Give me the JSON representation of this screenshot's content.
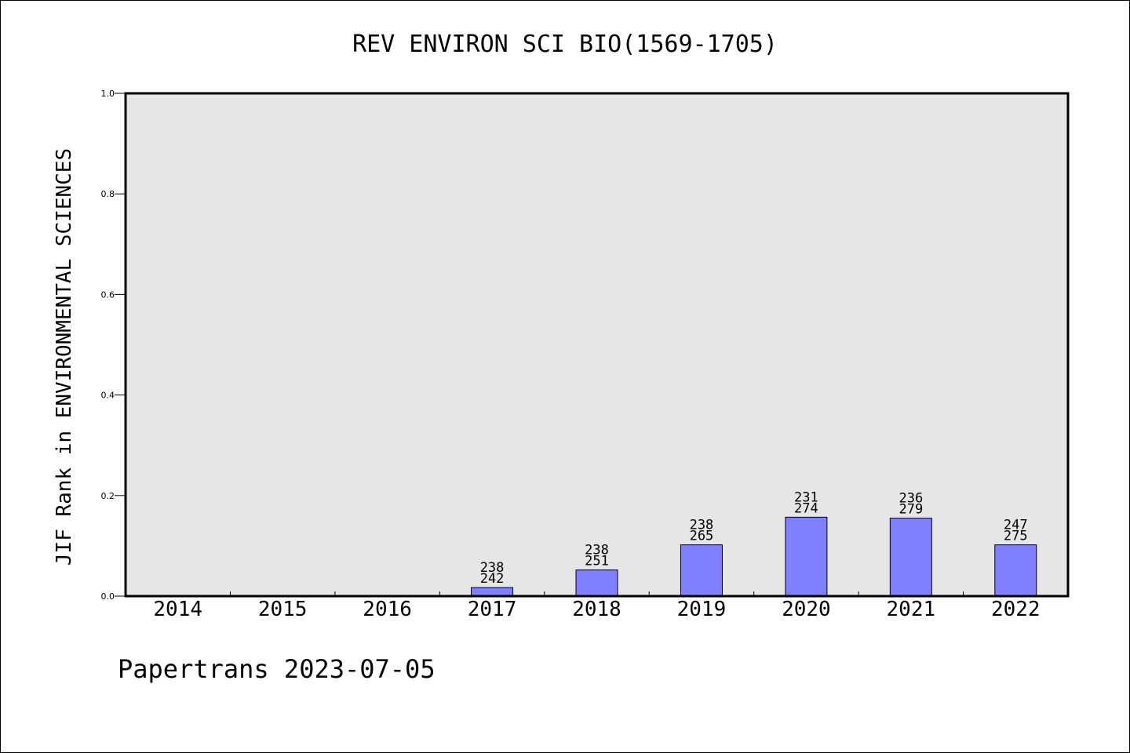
{
  "chart_data": {
    "type": "bar",
    "title": "REV ENVIRON SCI BIO(1569-1705)",
    "xlabel": "",
    "ylabel": "JIF Rank in ENVIRONMENTAL SCIENCES",
    "ylim": [
      0,
      1.0
    ],
    "yticks": [
      "0.0",
      "0.2",
      "0.4",
      "0.6",
      "0.8",
      "1.0"
    ],
    "categories": [
      "2014",
      "2015",
      "2016",
      "2017",
      "2018",
      "2019",
      "2020",
      "2021",
      "2022"
    ],
    "values": [
      null,
      null,
      null,
      0.017,
      0.052,
      0.102,
      0.157,
      0.155,
      0.102
    ],
    "label_top": [
      "",
      "",
      "",
      "238",
      "238",
      "238",
      "231",
      "236",
      "247"
    ],
    "label_bottom": [
      "",
      "",
      "",
      "242",
      "251",
      "265",
      "274",
      "279",
      "275"
    ],
    "grid": false,
    "bar_color": "#8080ff",
    "plot_background": "#e6e6e6"
  },
  "footer": "Papertrans 2023-07-05"
}
